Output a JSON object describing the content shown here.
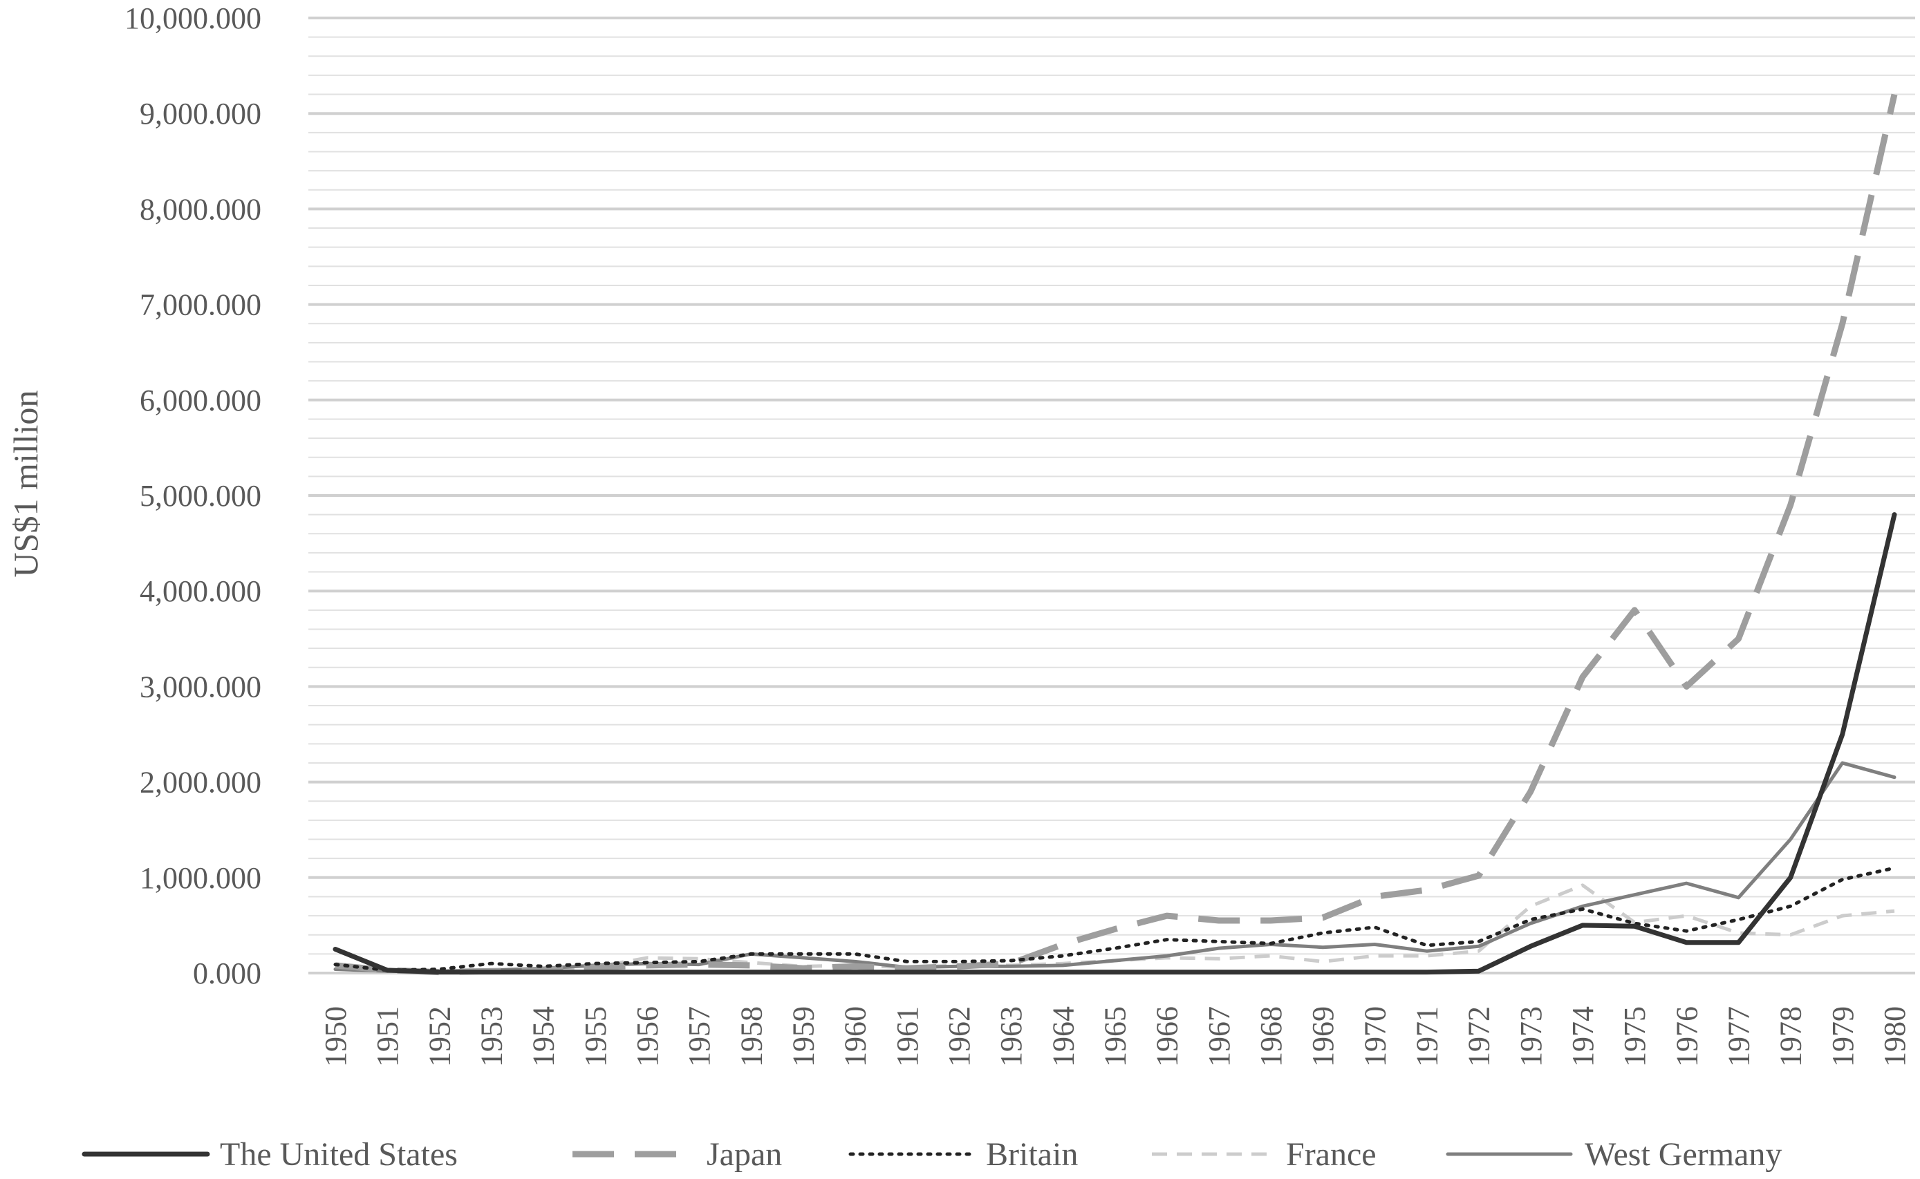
{
  "chart_data": {
    "type": "line",
    "title": "",
    "xlabel": "",
    "ylabel": "US$1  million",
    "ylim": [
      0,
      10000
    ],
    "y_ticks": [
      0,
      1000,
      2000,
      3000,
      4000,
      5000,
      6000,
      7000,
      8000,
      9000,
      10000
    ],
    "y_tick_labels": [
      "0.000",
      "1,000.000",
      "2,000.000",
      "3,000.000",
      "4,000.000",
      "5,000.000",
      "6,000.000",
      "7,000.000",
      "8,000.000",
      "9,000.000",
      "10,000.000"
    ],
    "grid": true,
    "legend_position": "bottom",
    "x": [
      "1950",
      "1951",
      "1952",
      "1953",
      "1954",
      "1955",
      "1956",
      "1957",
      "1958",
      "1959",
      "1960",
      "1961",
      "1962",
      "1963",
      "1964",
      "1965",
      "1966",
      "1967",
      "1968",
      "1969",
      "1970",
      "1971",
      "1972",
      "1973",
      "1974",
      "1975",
      "1976",
      "1977",
      "1978",
      "1979",
      "1980"
    ],
    "series": [
      {
        "name": "The United States",
        "color": "#333333",
        "dash": "solid",
        "values": [
          250,
          30,
          10,
          10,
          10,
          10,
          10,
          10,
          10,
          10,
          10,
          10,
          10,
          10,
          10,
          10,
          10,
          10,
          10,
          10,
          10,
          10,
          20,
          280,
          500,
          490,
          320,
          320,
          1000,
          2500,
          4800
        ]
      },
      {
        "name": "Japan",
        "color": "#9e9e9e",
        "dash": "long-dash",
        "values": [
          80,
          30,
          10,
          20,
          30,
          60,
          80,
          90,
          80,
          50,
          70,
          50,
          70,
          100,
          300,
          460,
          600,
          550,
          550,
          580,
          800,
          870,
          1020,
          1900,
          3100,
          3800,
          3000,
          3500,
          4900,
          6800,
          9200
        ]
      },
      {
        "name": "Britain",
        "color": "#222222",
        "dash": "dotted",
        "values": [
          90,
          30,
          40,
          100,
          70,
          100,
          110,
          120,
          200,
          200,
          200,
          120,
          120,
          130,
          180,
          260,
          350,
          330,
          310,
          420,
          480,
          290,
          330,
          560,
          670,
          520,
          440,
          560,
          700,
          980,
          1100
        ]
      },
      {
        "name": "France",
        "color": "#cccccc",
        "dash": "short-dash",
        "values": [
          60,
          20,
          20,
          30,
          40,
          60,
          160,
          150,
          110,
          70,
          80,
          60,
          80,
          80,
          100,
          130,
          160,
          150,
          180,
          120,
          180,
          180,
          230,
          700,
          920,
          530,
          600,
          420,
          400,
          600,
          650
        ]
      },
      {
        "name": "West Germany",
        "color": "#7f7f7f",
        "dash": "solid",
        "values": [
          40,
          20,
          20,
          30,
          50,
          80,
          100,
          90,
          200,
          160,
          120,
          60,
          70,
          70,
          80,
          130,
          180,
          260,
          300,
          270,
          300,
          230,
          280,
          520,
          700,
          820,
          940,
          790,
          1400,
          2200,
          2050
        ]
      }
    ]
  }
}
